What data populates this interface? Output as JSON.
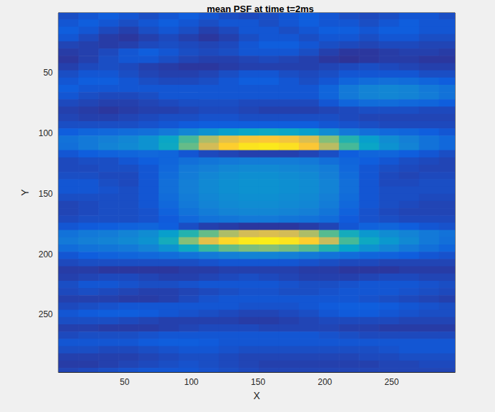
{
  "chart_data": {
    "type": "heatmap",
    "title": "mean PSF at time t=2ms",
    "x_label": "X",
    "y_label": "Y",
    "xlim": [
      0.5,
      297.5
    ],
    "ylim": [
      0.5,
      297.5
    ],
    "xticks": [
      50,
      100,
      150,
      200,
      250
    ],
    "yticks": [
      50,
      100,
      150,
      200,
      250
    ],
    "grid": false,
    "zlim": [
      0.1,
      1
    ],
    "x": [
      8,
      23,
      38,
      53,
      68,
      83,
      98,
      113,
      128,
      143,
      158,
      173,
      188,
      203,
      218,
      233,
      248,
      263,
      278,
      293
    ],
    "y": [
      3,
      9,
      15,
      21,
      27,
      33,
      39,
      45,
      51,
      57,
      63,
      69,
      75,
      81,
      87,
      93,
      99,
      105,
      111,
      117,
      123,
      129,
      135,
      141,
      147,
      153,
      159,
      165,
      171,
      177,
      183,
      189,
      195,
      201,
      207,
      213,
      219,
      225,
      231,
      237,
      243,
      249,
      255,
      261,
      267,
      273,
      279,
      285,
      291,
      297
    ],
    "cells": [
      [
        0.18,
        0.2,
        0.22,
        0.2,
        0.18,
        0.2,
        0.22,
        0.2,
        0.18,
        0.17,
        0.18,
        0.2,
        0.22,
        0.2,
        0.18,
        0.17,
        0.18,
        0.2,
        0.2,
        0.18
      ],
      [
        0.2,
        0.22,
        0.2,
        0.18,
        0.2,
        0.22,
        0.2,
        0.18,
        0.2,
        0.2,
        0.18,
        0.2,
        0.22,
        0.2,
        0.2,
        0.18,
        0.2,
        0.22,
        0.2,
        0.2
      ],
      [
        0.22,
        0.2,
        0.17,
        0.15,
        0.18,
        0.2,
        0.18,
        0.15,
        0.17,
        0.2,
        0.2,
        0.18,
        0.2,
        0.22,
        0.22,
        0.2,
        0.22,
        0.22,
        0.2,
        0.2
      ],
      [
        0.2,
        0.17,
        0.14,
        0.13,
        0.15,
        0.17,
        0.15,
        0.13,
        0.15,
        0.18,
        0.2,
        0.2,
        0.18,
        0.2,
        0.2,
        0.18,
        0.2,
        0.2,
        0.18,
        0.18
      ],
      [
        0.16,
        0.15,
        0.14,
        0.15,
        0.17,
        0.18,
        0.17,
        0.16,
        0.17,
        0.2,
        0.22,
        0.22,
        0.2,
        0.18,
        0.17,
        0.16,
        0.17,
        0.17,
        0.16,
        0.16
      ],
      [
        0.14,
        0.15,
        0.17,
        0.2,
        0.22,
        0.2,
        0.18,
        0.17,
        0.18,
        0.2,
        0.2,
        0.2,
        0.18,
        0.15,
        0.13,
        0.13,
        0.14,
        0.15,
        0.15,
        0.14
      ],
      [
        0.13,
        0.15,
        0.18,
        0.2,
        0.2,
        0.18,
        0.16,
        0.15,
        0.15,
        0.16,
        0.17,
        0.16,
        0.15,
        0.13,
        0.12,
        0.13,
        0.14,
        0.14,
        0.13,
        0.13
      ],
      [
        0.15,
        0.17,
        0.18,
        0.17,
        0.15,
        0.14,
        0.13,
        0.13,
        0.14,
        0.15,
        0.15,
        0.15,
        0.15,
        0.16,
        0.17,
        0.18,
        0.17,
        0.16,
        0.15,
        0.15
      ],
      [
        0.18,
        0.2,
        0.2,
        0.18,
        0.16,
        0.15,
        0.15,
        0.16,
        0.18,
        0.2,
        0.2,
        0.18,
        0.17,
        0.18,
        0.2,
        0.2,
        0.2,
        0.2,
        0.18,
        0.18
      ],
      [
        0.2,
        0.22,
        0.22,
        0.2,
        0.18,
        0.17,
        0.17,
        0.18,
        0.2,
        0.22,
        0.22,
        0.2,
        0.18,
        0.2,
        0.24,
        0.26,
        0.27,
        0.26,
        0.24,
        0.22
      ],
      [
        0.22,
        0.2,
        0.2,
        0.2,
        0.2,
        0.2,
        0.2,
        0.2,
        0.2,
        0.2,
        0.2,
        0.2,
        0.2,
        0.24,
        0.3,
        0.33,
        0.34,
        0.33,
        0.3,
        0.28
      ],
      [
        0.2,
        0.18,
        0.17,
        0.17,
        0.18,
        0.2,
        0.2,
        0.2,
        0.2,
        0.2,
        0.2,
        0.2,
        0.2,
        0.24,
        0.3,
        0.33,
        0.34,
        0.33,
        0.31,
        0.28
      ],
      [
        0.17,
        0.16,
        0.15,
        0.15,
        0.16,
        0.17,
        0.18,
        0.18,
        0.18,
        0.17,
        0.17,
        0.17,
        0.17,
        0.2,
        0.24,
        0.26,
        0.26,
        0.25,
        0.24,
        0.22
      ],
      [
        0.15,
        0.14,
        0.13,
        0.14,
        0.15,
        0.15,
        0.16,
        0.17,
        0.17,
        0.16,
        0.15,
        0.15,
        0.15,
        0.16,
        0.17,
        0.18,
        0.18,
        0.18,
        0.17,
        0.17
      ],
      [
        0.16,
        0.15,
        0.15,
        0.16,
        0.17,
        0.18,
        0.18,
        0.19,
        0.19,
        0.18,
        0.18,
        0.18,
        0.18,
        0.18,
        0.17,
        0.16,
        0.16,
        0.16,
        0.16,
        0.16
      ],
      [
        0.18,
        0.18,
        0.18,
        0.18,
        0.19,
        0.2,
        0.21,
        0.22,
        0.22,
        0.22,
        0.22,
        0.22,
        0.22,
        0.2,
        0.19,
        0.18,
        0.17,
        0.17,
        0.17,
        0.17
      ],
      [
        0.22,
        0.24,
        0.25,
        0.26,
        0.27,
        0.3,
        0.34,
        0.38,
        0.42,
        0.45,
        0.46,
        0.45,
        0.42,
        0.36,
        0.3,
        0.27,
        0.25,
        0.24,
        0.22,
        0.2
      ],
      [
        0.28,
        0.3,
        0.32,
        0.34,
        0.38,
        0.45,
        0.58,
        0.72,
        0.82,
        0.87,
        0.88,
        0.86,
        0.8,
        0.66,
        0.52,
        0.42,
        0.36,
        0.32,
        0.28,
        0.25
      ],
      [
        0.27,
        0.3,
        0.33,
        0.35,
        0.38,
        0.46,
        0.62,
        0.78,
        0.9,
        0.95,
        0.96,
        0.94,
        0.88,
        0.74,
        0.58,
        0.45,
        0.38,
        0.33,
        0.28,
        0.25
      ],
      [
        0.2,
        0.22,
        0.23,
        0.24,
        0.25,
        0.24,
        0.2,
        0.17,
        0.16,
        0.15,
        0.15,
        0.15,
        0.16,
        0.18,
        0.22,
        0.24,
        0.24,
        0.22,
        0.2,
        0.18
      ],
      [
        0.17,
        0.18,
        0.18,
        0.2,
        0.22,
        0.24,
        0.27,
        0.29,
        0.3,
        0.31,
        0.31,
        0.31,
        0.3,
        0.27,
        0.24,
        0.22,
        0.2,
        0.18,
        0.17,
        0.16
      ],
      [
        0.17,
        0.17,
        0.18,
        0.18,
        0.2,
        0.25,
        0.3,
        0.32,
        0.34,
        0.35,
        0.35,
        0.34,
        0.33,
        0.31,
        0.25,
        0.2,
        0.18,
        0.17,
        0.16,
        0.16
      ],
      [
        0.18,
        0.18,
        0.17,
        0.17,
        0.2,
        0.26,
        0.31,
        0.34,
        0.36,
        0.37,
        0.37,
        0.36,
        0.35,
        0.32,
        0.26,
        0.2,
        0.17,
        0.16,
        0.17,
        0.17
      ],
      [
        0.2,
        0.2,
        0.18,
        0.17,
        0.2,
        0.27,
        0.32,
        0.35,
        0.37,
        0.38,
        0.38,
        0.37,
        0.36,
        0.33,
        0.27,
        0.2,
        0.17,
        0.17,
        0.18,
        0.18
      ],
      [
        0.2,
        0.2,
        0.19,
        0.18,
        0.2,
        0.27,
        0.32,
        0.35,
        0.37,
        0.38,
        0.38,
        0.37,
        0.36,
        0.33,
        0.27,
        0.2,
        0.18,
        0.18,
        0.18,
        0.18
      ],
      [
        0.18,
        0.18,
        0.18,
        0.18,
        0.2,
        0.26,
        0.31,
        0.34,
        0.36,
        0.37,
        0.37,
        0.36,
        0.35,
        0.32,
        0.26,
        0.2,
        0.18,
        0.18,
        0.17,
        0.17
      ],
      [
        0.16,
        0.17,
        0.18,
        0.18,
        0.2,
        0.25,
        0.3,
        0.33,
        0.35,
        0.36,
        0.36,
        0.35,
        0.34,
        0.31,
        0.25,
        0.2,
        0.18,
        0.17,
        0.16,
        0.16
      ],
      [
        0.16,
        0.17,
        0.18,
        0.18,
        0.19,
        0.23,
        0.28,
        0.31,
        0.33,
        0.34,
        0.34,
        0.33,
        0.32,
        0.29,
        0.23,
        0.19,
        0.17,
        0.16,
        0.16,
        0.16
      ],
      [
        0.17,
        0.18,
        0.18,
        0.18,
        0.19,
        0.21,
        0.25,
        0.28,
        0.29,
        0.3,
        0.3,
        0.29,
        0.28,
        0.26,
        0.21,
        0.19,
        0.18,
        0.17,
        0.17,
        0.17
      ],
      [
        0.2,
        0.21,
        0.22,
        0.23,
        0.24,
        0.22,
        0.18,
        0.15,
        0.14,
        0.13,
        0.13,
        0.13,
        0.14,
        0.16,
        0.2,
        0.23,
        0.24,
        0.22,
        0.2,
        0.19
      ],
      [
        0.28,
        0.3,
        0.31,
        0.33,
        0.36,
        0.42,
        0.52,
        0.62,
        0.72,
        0.78,
        0.8,
        0.78,
        0.72,
        0.6,
        0.48,
        0.4,
        0.36,
        0.33,
        0.3,
        0.28
      ],
      [
        0.3,
        0.32,
        0.33,
        0.35,
        0.38,
        0.48,
        0.66,
        0.82,
        0.92,
        0.96,
        0.97,
        0.95,
        0.9,
        0.76,
        0.58,
        0.46,
        0.4,
        0.35,
        0.3,
        0.27
      ],
      [
        0.26,
        0.28,
        0.29,
        0.3,
        0.33,
        0.38,
        0.46,
        0.56,
        0.62,
        0.65,
        0.66,
        0.64,
        0.6,
        0.52,
        0.44,
        0.38,
        0.34,
        0.3,
        0.27,
        0.24
      ],
      [
        0.2,
        0.22,
        0.23,
        0.24,
        0.25,
        0.26,
        0.28,
        0.3,
        0.32,
        0.33,
        0.33,
        0.32,
        0.3,
        0.28,
        0.26,
        0.24,
        0.23,
        0.22,
        0.2,
        0.19
      ],
      [
        0.17,
        0.18,
        0.18,
        0.18,
        0.18,
        0.18,
        0.18,
        0.19,
        0.2,
        0.2,
        0.2,
        0.2,
        0.19,
        0.18,
        0.17,
        0.17,
        0.16,
        0.16,
        0.16,
        0.16
      ],
      [
        0.14,
        0.14,
        0.13,
        0.13,
        0.13,
        0.13,
        0.14,
        0.14,
        0.15,
        0.15,
        0.15,
        0.15,
        0.14,
        0.14,
        0.13,
        0.13,
        0.13,
        0.14,
        0.14,
        0.14
      ],
      [
        0.15,
        0.16,
        0.17,
        0.17,
        0.16,
        0.15,
        0.15,
        0.16,
        0.17,
        0.18,
        0.17,
        0.16,
        0.15,
        0.15,
        0.15,
        0.16,
        0.17,
        0.17,
        0.16,
        0.16
      ],
      [
        0.18,
        0.2,
        0.2,
        0.19,
        0.18,
        0.18,
        0.19,
        0.2,
        0.2,
        0.2,
        0.2,
        0.19,
        0.18,
        0.18,
        0.19,
        0.2,
        0.2,
        0.2,
        0.19,
        0.18
      ],
      [
        0.17,
        0.18,
        0.17,
        0.16,
        0.15,
        0.15,
        0.16,
        0.17,
        0.18,
        0.19,
        0.19,
        0.18,
        0.18,
        0.19,
        0.2,
        0.2,
        0.2,
        0.19,
        0.18,
        0.17
      ],
      [
        0.15,
        0.15,
        0.15,
        0.14,
        0.14,
        0.15,
        0.17,
        0.19,
        0.2,
        0.2,
        0.2,
        0.2,
        0.2,
        0.2,
        0.2,
        0.19,
        0.18,
        0.17,
        0.16,
        0.15
      ],
      [
        0.17,
        0.18,
        0.19,
        0.2,
        0.2,
        0.2,
        0.2,
        0.2,
        0.2,
        0.19,
        0.19,
        0.19,
        0.2,
        0.21,
        0.22,
        0.22,
        0.21,
        0.2,
        0.19,
        0.18
      ],
      [
        0.2,
        0.21,
        0.22,
        0.22,
        0.21,
        0.2,
        0.19,
        0.18,
        0.17,
        0.16,
        0.16,
        0.17,
        0.18,
        0.2,
        0.21,
        0.21,
        0.2,
        0.19,
        0.18,
        0.18
      ],
      [
        0.18,
        0.18,
        0.18,
        0.17,
        0.16,
        0.15,
        0.15,
        0.15,
        0.15,
        0.14,
        0.14,
        0.15,
        0.16,
        0.17,
        0.17,
        0.17,
        0.17,
        0.16,
        0.16,
        0.16
      ],
      [
        0.15,
        0.15,
        0.14,
        0.14,
        0.14,
        0.15,
        0.16,
        0.17,
        0.17,
        0.17,
        0.16,
        0.16,
        0.16,
        0.16,
        0.15,
        0.15,
        0.14,
        0.14,
        0.14,
        0.14
      ],
      [
        0.17,
        0.18,
        0.18,
        0.18,
        0.19,
        0.2,
        0.2,
        0.2,
        0.2,
        0.2,
        0.2,
        0.2,
        0.2,
        0.19,
        0.18,
        0.17,
        0.17,
        0.17,
        0.17,
        0.17
      ],
      [
        0.2,
        0.2,
        0.2,
        0.2,
        0.21,
        0.22,
        0.22,
        0.21,
        0.2,
        0.2,
        0.2,
        0.2,
        0.2,
        0.2,
        0.2,
        0.2,
        0.2,
        0.2,
        0.2,
        0.2
      ],
      [
        0.18,
        0.18,
        0.17,
        0.17,
        0.18,
        0.19,
        0.2,
        0.2,
        0.19,
        0.18,
        0.18,
        0.18,
        0.18,
        0.18,
        0.18,
        0.18,
        0.19,
        0.2,
        0.2,
        0.2
      ],
      [
        0.15,
        0.15,
        0.15,
        0.15,
        0.16,
        0.17,
        0.18,
        0.18,
        0.17,
        0.16,
        0.16,
        0.16,
        0.16,
        0.16,
        0.16,
        0.17,
        0.17,
        0.18,
        0.18,
        0.18
      ],
      [
        0.14,
        0.14,
        0.15,
        0.16,
        0.17,
        0.18,
        0.19,
        0.18,
        0.17,
        0.16,
        0.15,
        0.15,
        0.15,
        0.15,
        0.15,
        0.15,
        0.16,
        0.16,
        0.17,
        0.17
      ],
      [
        0.16,
        0.17,
        0.18,
        0.19,
        0.2,
        0.2,
        0.2,
        0.19,
        0.18,
        0.17,
        0.16,
        0.16,
        0.16,
        0.16,
        0.16,
        0.16,
        0.16,
        0.16,
        0.16,
        0.16
      ]
    ]
  }
}
